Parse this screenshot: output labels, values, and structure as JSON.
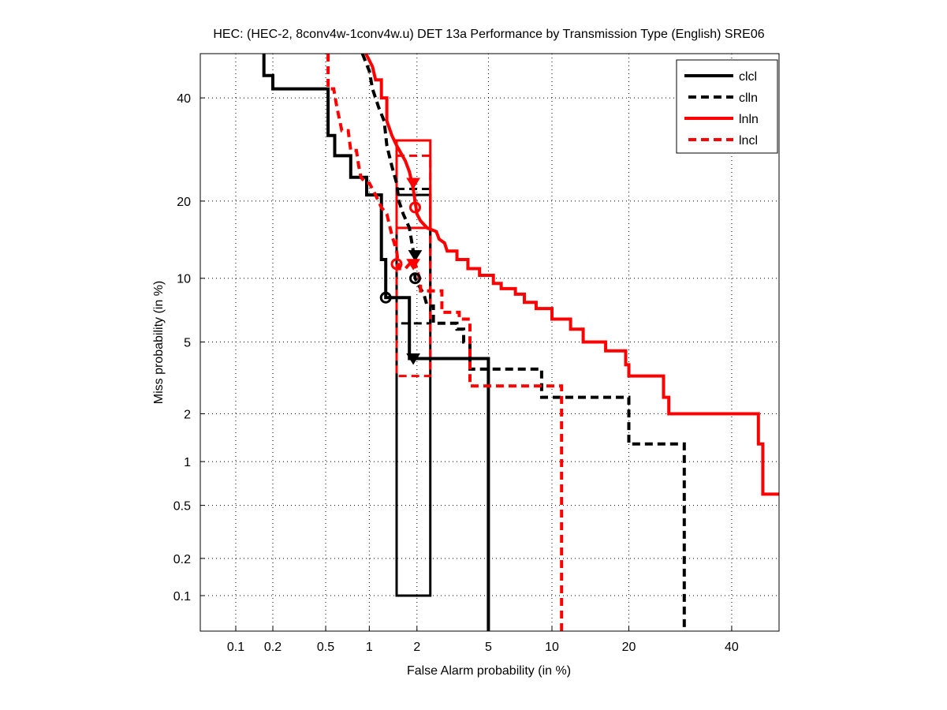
{
  "chart_data": {
    "type": "line",
    "subtype": "DET curve (normal deviate scale)",
    "title": "HEC: (HEC-2, 8conv4w-1conv4w.u) DET 13a Performance by Transmission Type (English) SRE06",
    "xlabel": "False Alarm probability (in %)",
    "ylabel": "Miss probability (in %)",
    "xscale": "probit",
    "yscale": "probit",
    "xlim": [
      0.05,
      51
    ],
    "ylim": [
      0.05,
      50
    ],
    "xticks": [
      "0.1",
      "0.2",
      "0.5",
      "1",
      "2",
      "5",
      "10",
      "20",
      "40"
    ],
    "yticks": [
      "0.1",
      "0.2",
      "0.5",
      "1",
      "2",
      "5",
      "10",
      "20",
      "40"
    ],
    "grid": true,
    "legend_position": "top-right",
    "series": [
      {
        "name": "clcl",
        "color": "#000000",
        "style": "solid",
        "points": [
          [
            0.17,
            50
          ],
          [
            0.17,
            45
          ],
          [
            0.2,
            45
          ],
          [
            0.2,
            42
          ],
          [
            0.52,
            42
          ],
          [
            0.52,
            32
          ],
          [
            0.58,
            32
          ],
          [
            0.58,
            28
          ],
          [
            0.75,
            28
          ],
          [
            0.75,
            24
          ],
          [
            0.96,
            24
          ],
          [
            0.96,
            21
          ],
          [
            1.2,
            21
          ],
          [
            1.2,
            12
          ],
          [
            1.28,
            12
          ],
          [
            1.28,
            8.2
          ],
          [
            1.8,
            8.2
          ],
          [
            1.8,
            4.1
          ],
          [
            5.0,
            4.1
          ],
          [
            5.0,
            0.05
          ]
        ],
        "min_dcf_marker": {
          "x": 1.28,
          "y": 8.2,
          "shape": "circle"
        },
        "act_dcf_marker": {
          "x": 1.9,
          "y": 4.1,
          "shape": "triangle-down"
        },
        "conf_box": {
          "x0": 1.5,
          "x1": 2.4,
          "y0": 0.1,
          "y1": 21
        }
      },
      {
        "name": "clln",
        "color": "#000000",
        "style": "dashed",
        "points": [
          [
            0.9,
            50
          ],
          [
            1.0,
            46
          ],
          [
            1.05,
            42
          ],
          [
            1.15,
            38
          ],
          [
            1.25,
            35
          ],
          [
            1.3,
            30
          ],
          [
            1.4,
            26
          ],
          [
            1.5,
            23
          ],
          [
            1.55,
            20
          ],
          [
            1.65,
            18
          ],
          [
            1.8,
            16
          ],
          [
            1.9,
            13
          ],
          [
            1.95,
            10
          ],
          [
            2.1,
            9
          ],
          [
            2.2,
            8.5
          ],
          [
            2.3,
            7.5
          ],
          [
            2.5,
            7.5
          ],
          [
            2.5,
            6.2
          ],
          [
            3.4,
            6.2
          ],
          [
            3.4,
            5.8
          ],
          [
            3.7,
            5.8
          ],
          [
            3.7,
            5.0
          ],
          [
            4.0,
            5.0
          ],
          [
            4.0,
            3.6
          ],
          [
            9.0,
            3.6
          ],
          [
            9.0,
            2.5
          ],
          [
            20,
            2.5
          ],
          [
            20,
            1.3
          ],
          [
            30,
            1.3
          ],
          [
            30,
            0.05
          ]
        ],
        "min_dcf_marker": {
          "x": 1.95,
          "y": 10,
          "shape": "circle"
        },
        "act_dcf_marker": {
          "x": 1.95,
          "y": 12.5,
          "shape": "triangle-down"
        },
        "conf_box": {
          "x0": 1.5,
          "x1": 2.4,
          "y0": 6.2,
          "y1": 22
        }
      },
      {
        "name": "lnln",
        "color": "#ff0000",
        "style": "solid",
        "points": [
          [
            0.95,
            50
          ],
          [
            1.05,
            47
          ],
          [
            1.1,
            44
          ],
          [
            1.2,
            44
          ],
          [
            1.2,
            40
          ],
          [
            1.3,
            40
          ],
          [
            1.3,
            35
          ],
          [
            1.4,
            32
          ],
          [
            1.5,
            30
          ],
          [
            1.7,
            27
          ],
          [
            1.8,
            25
          ],
          [
            1.9,
            22
          ],
          [
            2.0,
            18
          ],
          [
            2.1,
            17
          ],
          [
            2.3,
            16
          ],
          [
            2.6,
            15.5
          ],
          [
            2.7,
            14.5
          ],
          [
            2.9,
            14
          ],
          [
            3.0,
            13
          ],
          [
            3.4,
            13
          ],
          [
            3.4,
            12
          ],
          [
            3.9,
            12
          ],
          [
            3.9,
            11
          ],
          [
            4.5,
            11
          ],
          [
            4.5,
            10.3
          ],
          [
            5.3,
            10.3
          ],
          [
            5.3,
            9.5
          ],
          [
            5.8,
            9.5
          ],
          [
            5.8,
            9.0
          ],
          [
            6.8,
            9.0
          ],
          [
            6.8,
            8.5
          ],
          [
            7.5,
            8.5
          ],
          [
            7.5,
            7.8
          ],
          [
            8.5,
            7.8
          ],
          [
            8.5,
            7.3
          ],
          [
            10,
            7.3
          ],
          [
            10,
            6.5
          ],
          [
            12,
            6.5
          ],
          [
            12,
            5.8
          ],
          [
            13.5,
            5.8
          ],
          [
            13.5,
            5.0
          ],
          [
            16.5,
            5.0
          ],
          [
            16.5,
            4.5
          ],
          [
            19.5,
            4.5
          ],
          [
            19.5,
            3.8
          ],
          [
            20,
            3.8
          ],
          [
            20,
            3.3
          ],
          [
            26,
            3.3
          ],
          [
            26,
            2.5
          ],
          [
            27,
            2.5
          ],
          [
            27,
            2.0
          ],
          [
            46,
            2.0
          ],
          [
            46,
            1.3
          ],
          [
            47,
            1.3
          ],
          [
            47,
            0.6
          ],
          [
            51,
            0.6
          ]
        ],
        "min_dcf_marker": {
          "x": 1.95,
          "y": 19,
          "shape": "circle"
        },
        "act_dcf_marker": {
          "x": 1.9,
          "y": 23,
          "shape": "triangle-down"
        },
        "conf_box": {
          "x0": 1.5,
          "x1": 2.4,
          "y0": 16,
          "y1": 31
        }
      },
      {
        "name": "lncl",
        "color": "#ff0000",
        "style": "dashed",
        "points": [
          [
            0.52,
            50
          ],
          [
            0.52,
            42
          ],
          [
            0.57,
            42
          ],
          [
            0.6,
            38
          ],
          [
            0.65,
            33
          ],
          [
            0.72,
            33
          ],
          [
            0.75,
            29
          ],
          [
            0.82,
            29
          ],
          [
            0.85,
            26
          ],
          [
            0.88,
            24
          ],
          [
            0.95,
            23
          ],
          [
            1.0,
            23
          ],
          [
            1.1,
            21
          ],
          [
            1.2,
            19
          ],
          [
            1.3,
            18
          ],
          [
            1.4,
            15
          ],
          [
            1.5,
            13
          ],
          [
            1.55,
            11
          ],
          [
            1.7,
            11
          ],
          [
            1.9,
            12
          ],
          [
            2.0,
            11
          ],
          [
            2.1,
            9.5
          ],
          [
            2.1,
            8.8
          ],
          [
            2.8,
            8.8
          ],
          [
            2.8,
            7.0
          ],
          [
            3.5,
            7.0
          ],
          [
            3.5,
            6.5
          ],
          [
            4.0,
            6.5
          ],
          [
            4.0,
            2.9
          ],
          [
            11,
            2.9
          ],
          [
            11,
            0.05
          ]
        ],
        "min_dcf_marker": {
          "x": 1.5,
          "y": 11.5,
          "shape": "circle"
        },
        "act_dcf_marker": {
          "x": 1.9,
          "y": 11.5,
          "shape": "triangle-down"
        },
        "conf_box": {
          "x0": 1.5,
          "x1": 2.4,
          "y0": 3.3,
          "y1": 28
        }
      }
    ]
  }
}
